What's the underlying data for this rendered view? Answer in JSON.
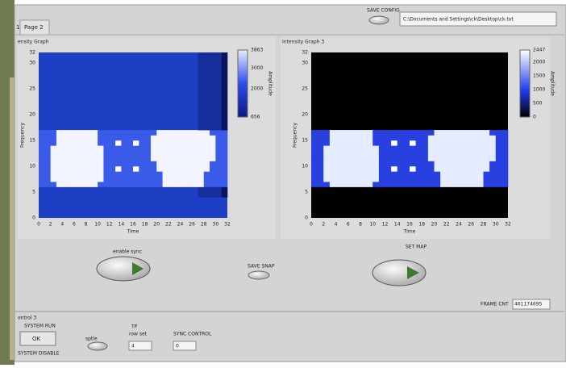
{
  "tabs": {
    "left_stub": "1:",
    "active": "Page 2"
  },
  "header": {
    "save_config": "SAVE CONFIG",
    "path": "C:\\Documents and Settings\\ck\\Desktop\\ck.txt"
  },
  "graphs": [
    {
      "title": "ensity Graph",
      "y_label": "Frequency",
      "x_label": "Time",
      "yticks": [
        0,
        5,
        10,
        15,
        20,
        25,
        30,
        32
      ],
      "xticks": [
        0,
        2,
        4,
        6,
        8,
        10,
        12,
        14,
        16,
        18,
        20,
        22,
        24,
        26,
        28,
        30,
        32
      ],
      "colorbar_ticks": [
        3863,
        3000,
        2000,
        656
      ],
      "colorbar_label": "Amplitude"
    },
    {
      "title": "Intensity Graph 3",
      "y_label": "Frequency",
      "x_label": "Time",
      "yticks": [
        0,
        5,
        10,
        15,
        20,
        25,
        30,
        32
      ],
      "xticks": [
        0,
        2,
        4,
        6,
        8,
        10,
        12,
        14,
        16,
        18,
        20,
        22,
        24,
        26,
        28,
        30,
        32
      ],
      "colorbar_ticks": [
        2447,
        2000,
        1500,
        1000,
        500,
        0
      ],
      "colorbar_label": "Amplitude"
    }
  ],
  "controls": {
    "enable_sync": "enable sync",
    "save_snap": "SAVE SNAP",
    "set_map": "SET MAP",
    "frame_cnt_label": "FRAME CNT",
    "frame_cnt_value": "461174695"
  },
  "bottom": {
    "section": "ontrol 3",
    "system_run": "SYSTEM RUN",
    "ok": "OK",
    "system_disable": "SYSTEM DISABLE",
    "toggle_label": "sptle",
    "tp": "TP",
    "row_set": "row set",
    "row_set_value": "4",
    "sync_control": "SYNC CONTROL",
    "sync_control_value": "0"
  }
}
